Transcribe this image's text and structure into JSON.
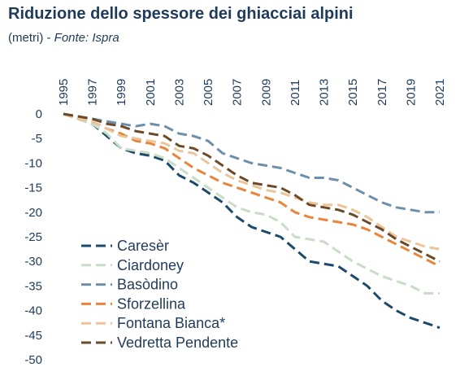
{
  "title": "Riduzione dello spessore dei ghiacciai alpini",
  "subtitle_unit": "(metri) - ",
  "subtitle_source": "Fonte: Ispra",
  "chart_data": {
    "type": "line",
    "title": "Riduzione dello spessore dei ghiacciai alpini",
    "ylabel": "",
    "xlabel": "",
    "x": [
      1995,
      1996,
      1997,
      1998,
      1999,
      2000,
      2001,
      2002,
      2003,
      2004,
      2005,
      2006,
      2007,
      2008,
      2009,
      2010,
      2011,
      2012,
      2013,
      2014,
      2015,
      2016,
      2017,
      2018,
      2019,
      2020,
      2021
    ],
    "x_ticks": [
      "1995",
      "1997",
      "1999",
      "2001",
      "2003",
      "2005",
      "2007",
      "2009",
      "2011",
      "2013",
      "2015",
      "2017",
      "2019",
      "2021"
    ],
    "ylim": [
      -50,
      0
    ],
    "y_ticks": [
      0,
      -5,
      -10,
      -15,
      -20,
      -25,
      -30,
      -35,
      -40,
      -45,
      -50
    ],
    "grid": false,
    "legend_position": "bottom-left",
    "series": [
      {
        "name": "Caresèr",
        "color": "#1b4a6b",
        "values": [
          0,
          -1,
          -2,
          -4.5,
          -7,
          -8,
          -8.5,
          -9.5,
          -12.5,
          -14,
          -16,
          -18,
          -21,
          -23,
          -24,
          -25,
          -27.5,
          -30,
          -30.5,
          -31,
          -33,
          -35,
          -38,
          -40,
          -41.5,
          -42.5,
          -43.5
        ]
      },
      {
        "name": "Ciardoney",
        "color": "#c9dcc8",
        "values": [
          0,
          -1,
          -2,
          -4,
          -7,
          -7.5,
          -8,
          -9,
          -11,
          -13,
          -15,
          -17,
          -19,
          -20,
          -20.5,
          -22,
          -25,
          -25.5,
          -26,
          -28,
          -30,
          -31.5,
          -33,
          -34,
          -35,
          -36.5,
          -36.5
        ]
      },
      {
        "name": "Basòdino",
        "color": "#6d8fab",
        "values": [
          0,
          -0.5,
          -1,
          -1.5,
          -2,
          -2.5,
          -2,
          -2.5,
          -4,
          -4.5,
          -5.5,
          -8,
          -9,
          -10,
          -10.5,
          -11,
          -12,
          -13,
          -13,
          -13.5,
          -15,
          -16.5,
          -18,
          -19,
          -19.5,
          -20,
          -20
        ]
      },
      {
        "name": "Sforzellina",
        "color": "#e8843b",
        "values": [
          0,
          -1,
          -1.5,
          -3,
          -4,
          -5.5,
          -6,
          -7,
          -9,
          -11,
          -12.5,
          -14,
          -15,
          -16,
          -17,
          -18,
          -20,
          -21,
          -21.5,
          -22,
          -22.5,
          -23.5,
          -25,
          -26.5,
          -28,
          -29.5,
          -31
        ]
      },
      {
        "name": "Fontana Bianca*",
        "color": "#ebc49a",
        "values": [
          0,
          -1,
          -1.5,
          -3,
          -4.5,
          -5,
          -5.5,
          -6,
          -7.5,
          -8,
          -10,
          -12,
          -13.5,
          -14.5,
          -15.5,
          -16,
          -17,
          -18,
          -18.5,
          -18.5,
          -19.5,
          -21,
          -23,
          -25,
          -26,
          -27,
          -27.5
        ]
      },
      {
        "name": "Vedretta Pendente",
        "color": "#6b4a2a",
        "values": [
          0,
          -0.5,
          -1,
          -2,
          -2.5,
          -3.5,
          -4,
          -4.5,
          -6.5,
          -7,
          -8.5,
          -10.5,
          -12.5,
          -14,
          -14.5,
          -15,
          -16.5,
          -18.5,
          -19,
          -19.5,
          -20.5,
          -22,
          -23.5,
          -25.5,
          -27,
          -28.5,
          -30
        ]
      }
    ]
  }
}
